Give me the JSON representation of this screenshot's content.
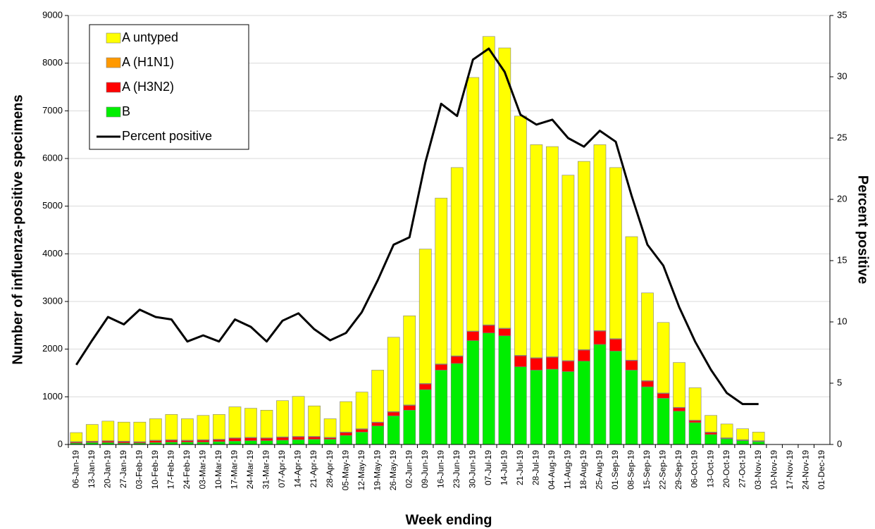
{
  "chart_data": {
    "type": "bar",
    "y_label": "Number of influenza-positive specimens",
    "y2_label": "Percent positive",
    "x_label": "Week ending",
    "categories": [
      "06-Jan-19",
      "13-Jan-19",
      "20-Jan-19",
      "27-Jan-19",
      "03-Feb-19",
      "10-Feb-19",
      "17-Feb-19",
      "24-Feb-19",
      "03-Mar-19",
      "10-Mar-19",
      "17-Mar-19",
      "24-Mar-19",
      "31-Mar-19",
      "07-Apr-19",
      "14-Apr-19",
      "21-Apr-19",
      "28-Apr-19",
      "05-May-19",
      "12-May-19",
      "19-May-19",
      "26-May-19",
      "02-Jun-19",
      "09-Jun-19",
      "16-Jun-19",
      "23-Jun-19",
      "30-Jun-19",
      "07-Jul-19",
      "14-Jul-19",
      "21-Jul-19",
      "28-Jul-19",
      "04-Aug-19",
      "11-Aug-19",
      "18-Aug-19",
      "25-Aug-19",
      "01-Sep-19",
      "08-Sep-19",
      "15-Sep-19",
      "22-Sep-19",
      "29-Sep-19",
      "06-Oct-19",
      "13-Oct-19",
      "20-Oct-19",
      "27-Oct-19",
      "03-Nov-19",
      "10-Nov-19",
      "17-Nov-19",
      "24-Nov-19",
      "01-Dec-19"
    ],
    "series": [
      {
        "name": "A untyped",
        "color": "#ffff00",
        "values": [
          190,
          350,
          410,
          400,
          410,
          450,
          530,
          450,
          510,
          520,
          650,
          610,
          580,
          760,
          840,
          640,
          390,
          640,
          770,
          1090,
          1560,
          1870,
          2820,
          3480,
          3950,
          5320,
          6050,
          5880,
          5020,
          4470,
          4410,
          3890,
          3950,
          3900,
          3590,
          2590,
          1840,
          1480,
          940,
          680,
          350,
          290,
          230,
          180,
          null,
          null,
          null,
          null
        ]
      },
      {
        "name": "A (H1N1)",
        "color": "#ff9900",
        "values": [
          10,
          10,
          10,
          10,
          10,
          10,
          10,
          10,
          10,
          10,
          10,
          10,
          10,
          10,
          10,
          10,
          10,
          10,
          10,
          10,
          10,
          10,
          10,
          10,
          10,
          10,
          10,
          10,
          10,
          10,
          10,
          10,
          10,
          10,
          10,
          10,
          10,
          10,
          10,
          10,
          10,
          10,
          10,
          10,
          null,
          null,
          null,
          null
        ]
      },
      {
        "name": "A (H3N2)",
        "color": "#ff0000",
        "values": [
          20,
          20,
          30,
          30,
          20,
          40,
          40,
          30,
          40,
          40,
          60,
          60,
          50,
          60,
          60,
          50,
          30,
          60,
          60,
          70,
          80,
          100,
          120,
          120,
          150,
          190,
          160,
          150,
          230,
          250,
          250,
          220,
          230,
          280,
          250,
          200,
          120,
          100,
          70,
          40,
          40,
          10,
          10,
          10,
          null,
          null,
          null,
          null
        ]
      },
      {
        "name": "B",
        "color": "#00ee00",
        "values": [
          30,
          40,
          40,
          30,
          30,
          40,
          50,
          50,
          50,
          60,
          70,
          80,
          80,
          90,
          100,
          110,
          110,
          190,
          260,
          390,
          600,
          720,
          1150,
          1560,
          1700,
          2180,
          2340,
          2280,
          1630,
          1560,
          1580,
          1530,
          1750,
          2100,
          1960,
          1560,
          1210,
          970,
          700,
          460,
          210,
          120,
          80,
          60,
          null,
          null,
          null,
          null
        ]
      },
      {
        "name": "Percent positive",
        "type": "line",
        "axis": "y2",
        "color": "#000000",
        "values": [
          6.5,
          8.5,
          10.4,
          9.8,
          11.0,
          10.4,
          10.2,
          8.4,
          8.9,
          8.4,
          10.2,
          9.6,
          8.4,
          10.1,
          10.7,
          9.4,
          8.5,
          9.1,
          10.8,
          13.4,
          16.3,
          16.9,
          23.0,
          27.8,
          26.8,
          31.4,
          32.3,
          30.4,
          26.9,
          26.1,
          26.5,
          25.0,
          24.3,
          25.6,
          24.7,
          20.3,
          16.3,
          14.6,
          11.2,
          8.4,
          6.1,
          4.2,
          3.3,
          3.3,
          null,
          null,
          null,
          null
        ]
      }
    ],
    "stacked": true,
    "ylim": [
      0,
      9000
    ],
    "yticks": [
      0,
      1000,
      2000,
      3000,
      4000,
      5000,
      6000,
      7000,
      8000,
      9000
    ],
    "y2lim": [
      0,
      35
    ],
    "y2ticks": [
      0,
      5,
      10,
      15,
      20,
      25,
      30,
      35
    ],
    "grid": true,
    "legend": "upper left"
  }
}
